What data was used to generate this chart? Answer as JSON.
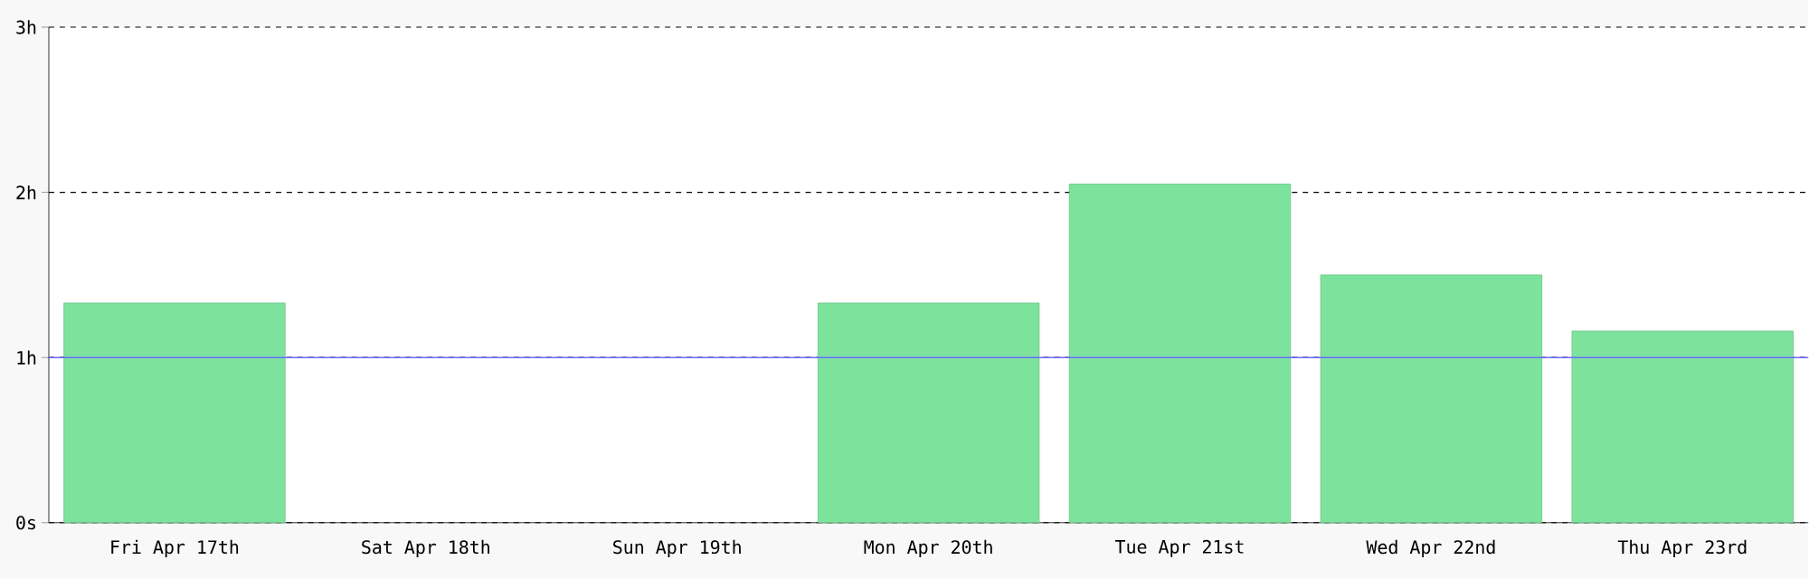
{
  "chart_data": {
    "type": "bar",
    "categories": [
      "Fri Apr 17th",
      "Sat Apr 18th",
      "Sun Apr 19th",
      "Mon Apr 20th",
      "Tue Apr 21st",
      "Wed Apr 22nd",
      "Thu Apr 23rd"
    ],
    "values": [
      1.33,
      null,
      null,
      1.33,
      2.05,
      1.5,
      1.16
    ],
    "color": "#7de39c",
    "ylim": [
      0,
      3
    ],
    "yticks": [
      {
        "value": 0,
        "label": "0s"
      },
      {
        "value": 1,
        "label": "1h"
      },
      {
        "value": 2,
        "label": "2h"
      },
      {
        "value": 3,
        "label": "3h"
      }
    ],
    "grid": "y",
    "ref_lines": [
      {
        "axis": "y",
        "value": 1,
        "color": "#6a6aff"
      }
    ]
  }
}
